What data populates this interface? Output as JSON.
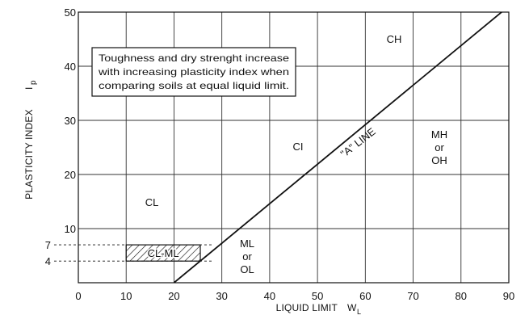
{
  "chart_data": {
    "type": "line",
    "xlabel": "LIQUID LIMIT",
    "xlabel_symbol": "W",
    "xlabel_sub": "L",
    "ylabel": "PLASTICITY INDEX",
    "ylabel_symbol": "I",
    "ylabel_sub": "p",
    "xlim": [
      0,
      90
    ],
    "ylim": [
      0,
      50
    ],
    "x_ticks": [
      "0",
      "10",
      "20",
      "30",
      "40",
      "50",
      "60",
      "70",
      "80",
      "90"
    ],
    "y_ticks": [
      "10",
      "20",
      "30",
      "40",
      "50"
    ],
    "y_extra_ticks": [
      "4",
      "7"
    ],
    "grid": true,
    "series": [
      {
        "name": "\"A\" LINE",
        "x": [
          20,
          90
        ],
        "y": [
          0,
          51.1
        ]
      }
    ],
    "hatched_band": {
      "label": "CL-ML",
      "x": [
        10,
        25.5
      ],
      "y": [
        4,
        7
      ],
      "guide_x_end": 28
    }
  },
  "zones": {
    "ch": "CH",
    "ci": "CI",
    "cl": "CL",
    "mh": "MH",
    "mh_or": "or",
    "oh": "OH",
    "ml": "ML",
    "ml_or": "or",
    "ol": "OL"
  },
  "note": {
    "line1": "Toughness and dry strenght increase",
    "line2": "with increasing plasticity index when",
    "line3": "comparing soils at equal liquid limit."
  },
  "a_line_label": "\"A\" LINE"
}
